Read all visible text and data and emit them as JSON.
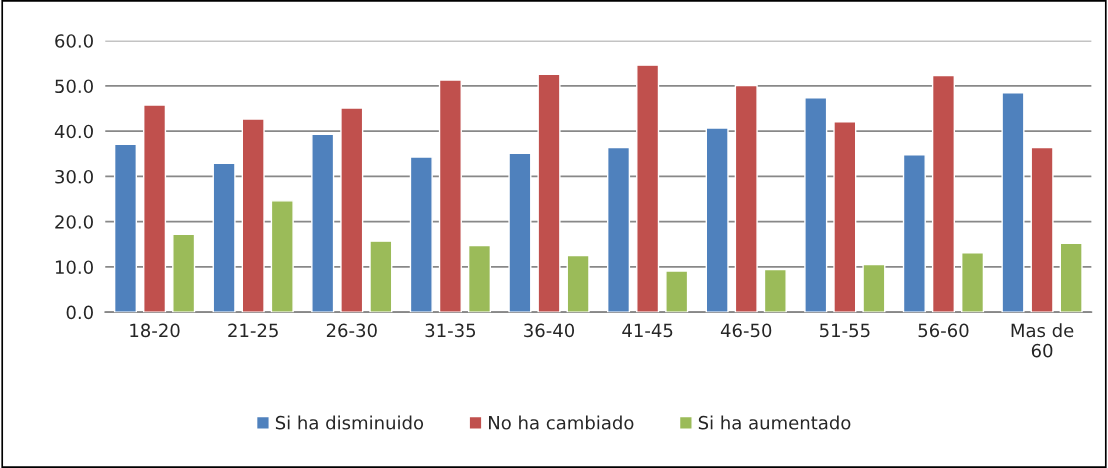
{
  "chart_data": {
    "type": "bar",
    "categories": [
      "18-20",
      "21-25",
      "26-30",
      "31-35",
      "36-40",
      "41-45",
      "46-50",
      "51-55",
      "56-60",
      "Mas de\n60"
    ],
    "series": [
      {
        "name": "Si ha disminuido",
        "color": "#4f81bd",
        "values": [
          37.1,
          32.9,
          39.3,
          34.3,
          35.1,
          36.4,
          40.7,
          47.4,
          34.8,
          48.5
        ]
      },
      {
        "name": "No ha cambiado",
        "color": "#c0504d",
        "values": [
          45.8,
          42.7,
          45.1,
          51.3,
          52.6,
          54.6,
          50.1,
          42.1,
          52.3,
          36.4
        ]
      },
      {
        "name": "Si ha aumentado",
        "color": "#9bbb59",
        "values": [
          17.2,
          24.6,
          15.7,
          14.7,
          12.5,
          9.1,
          9.4,
          10.5,
          13.1,
          15.2
        ]
      }
    ],
    "ylim": [
      0,
      60
    ],
    "yticks": [
      {
        "value": 0,
        "label": "0.0"
      },
      {
        "value": 10,
        "label": "10.0"
      },
      {
        "value": 20,
        "label": "20.0"
      },
      {
        "value": 30,
        "label": "30.0"
      },
      {
        "value": 40,
        "label": "40.0"
      },
      {
        "value": 50,
        "label": "50.0"
      },
      {
        "value": 60,
        "label": "60.0"
      }
    ],
    "grid": "y",
    "legend": "bottom"
  }
}
